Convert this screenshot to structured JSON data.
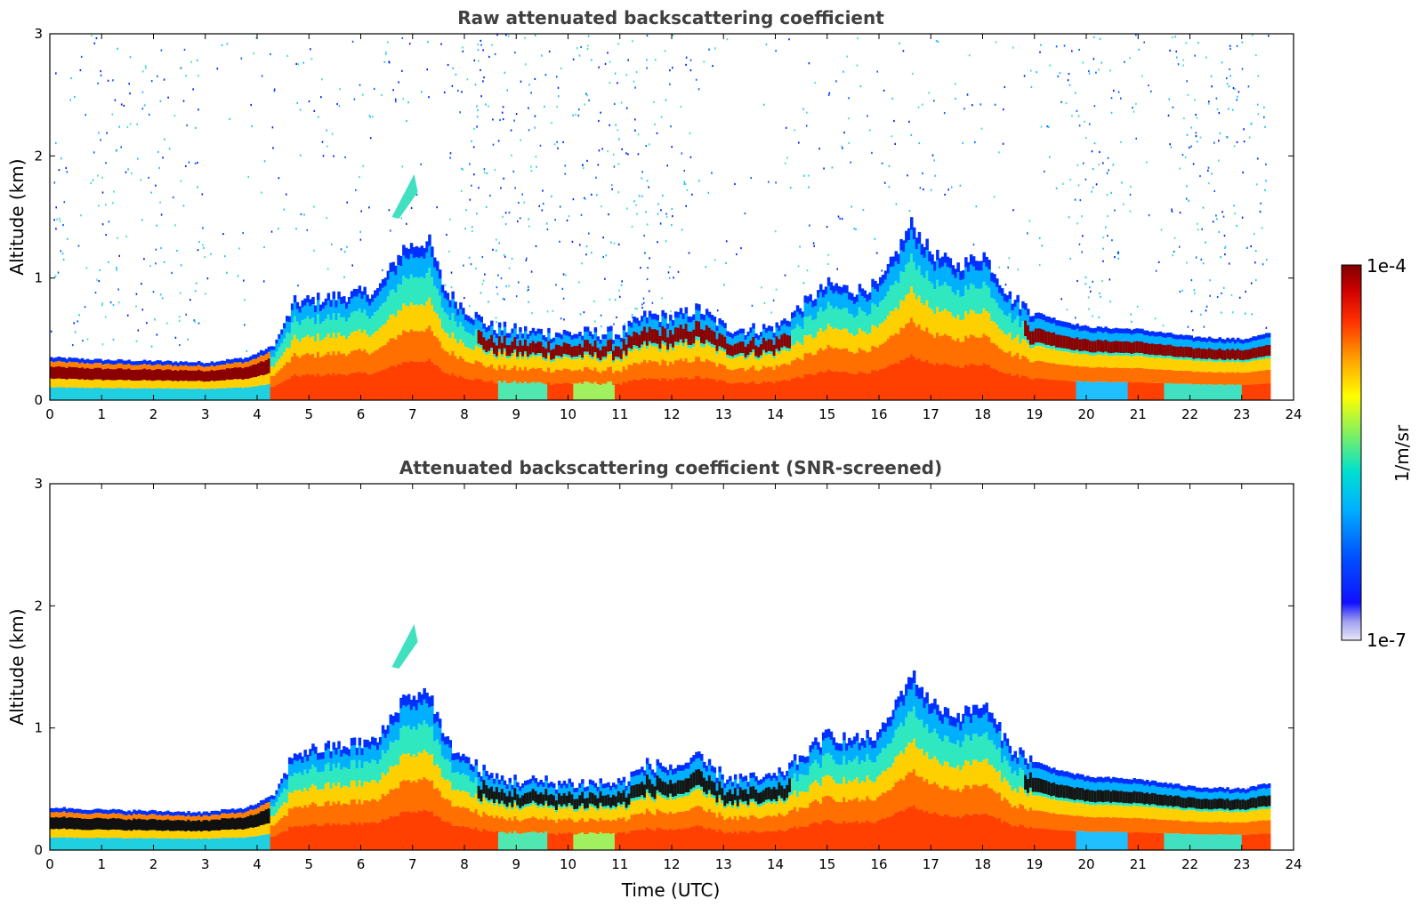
{
  "chart_data": [
    {
      "type": "heatmap",
      "title": "Raw attenuated backscattering coefficient",
      "xlabel": "",
      "ylabel": "Altitude (km)",
      "xlim": [
        0,
        24
      ],
      "ylim": [
        0,
        3
      ],
      "xticks": [
        "0",
        "1",
        "2",
        "3",
        "4",
        "5",
        "6",
        "7",
        "8",
        "9",
        "10",
        "11",
        "12",
        "13",
        "14",
        "15",
        "16",
        "17",
        "18",
        "19",
        "20",
        "21",
        "22",
        "23",
        "24"
      ],
      "yticks": [
        "0",
        "1",
        "2",
        "3"
      ],
      "data_extent_hours": [
        0,
        23.55
      ],
      "boundary_layer_top_km": [
        [
          0,
          0.35
        ],
        [
          1,
          0.33
        ],
        [
          2,
          0.32
        ],
        [
          3,
          0.31
        ],
        [
          3.8,
          0.35
        ],
        [
          4.3,
          0.45
        ],
        [
          4.7,
          0.8
        ],
        [
          5.5,
          0.85
        ],
        [
          6.3,
          0.9
        ],
        [
          6.8,
          1.25
        ],
        [
          7.3,
          1.3
        ],
        [
          7.6,
          0.9
        ],
        [
          8,
          0.75
        ],
        [
          8.5,
          0.6
        ],
        [
          9,
          0.57
        ],
        [
          10,
          0.55
        ],
        [
          11,
          0.55
        ],
        [
          11.5,
          0.7
        ],
        [
          12,
          0.68
        ],
        [
          12.5,
          0.75
        ],
        [
          13,
          0.6
        ],
        [
          13.5,
          0.58
        ],
        [
          14,
          0.6
        ],
        [
          14.5,
          0.78
        ],
        [
          15,
          0.95
        ],
        [
          15.5,
          0.9
        ],
        [
          16,
          0.95
        ],
        [
          16.6,
          1.45
        ],
        [
          17,
          1.2
        ],
        [
          17.5,
          1.1
        ],
        [
          18,
          1.2
        ],
        [
          18.5,
          0.85
        ],
        [
          19,
          0.72
        ],
        [
          19.5,
          0.65
        ],
        [
          20,
          0.6
        ],
        [
          21,
          0.58
        ],
        [
          22,
          0.52
        ],
        [
          23,
          0.5
        ],
        [
          23.55,
          0.55
        ]
      ],
      "aerosol_plume_km": {
        "x": [
          6.6,
          7.1
        ],
        "y": [
          1.5,
          1.85
        ]
      },
      "noise_above_layer": true
    },
    {
      "type": "heatmap",
      "title": "Attenuated backscattering coefficient (SNR-screened)",
      "xlabel": "Time (UTC)",
      "ylabel": "Altitude (km)",
      "xlim": [
        0,
        24
      ],
      "ylim": [
        0,
        3
      ],
      "xticks": [
        "0",
        "1",
        "2",
        "3",
        "4",
        "5",
        "6",
        "7",
        "8",
        "9",
        "10",
        "11",
        "12",
        "13",
        "14",
        "15",
        "16",
        "17",
        "18",
        "19",
        "20",
        "21",
        "22",
        "23",
        "24"
      ],
      "yticks": [
        "0",
        "1",
        "2",
        "3"
      ],
      "data_extent_hours": [
        0,
        23.55
      ],
      "noise_above_layer": false
    }
  ],
  "colorbar": {
    "label": "1/m/sr",
    "min_label": "1e-7",
    "max_label": "1e-4",
    "colormap": [
      "#e8e8f8",
      "#c0c0f0",
      "#8080f0",
      "#0000ff",
      "#0060ff",
      "#00a0ff",
      "#00e0e0",
      "#40f0a0",
      "#c0f040",
      "#ffff00",
      "#ffb000",
      "#ff6000",
      "#ff2000",
      "#d00000",
      "#800000"
    ]
  }
}
